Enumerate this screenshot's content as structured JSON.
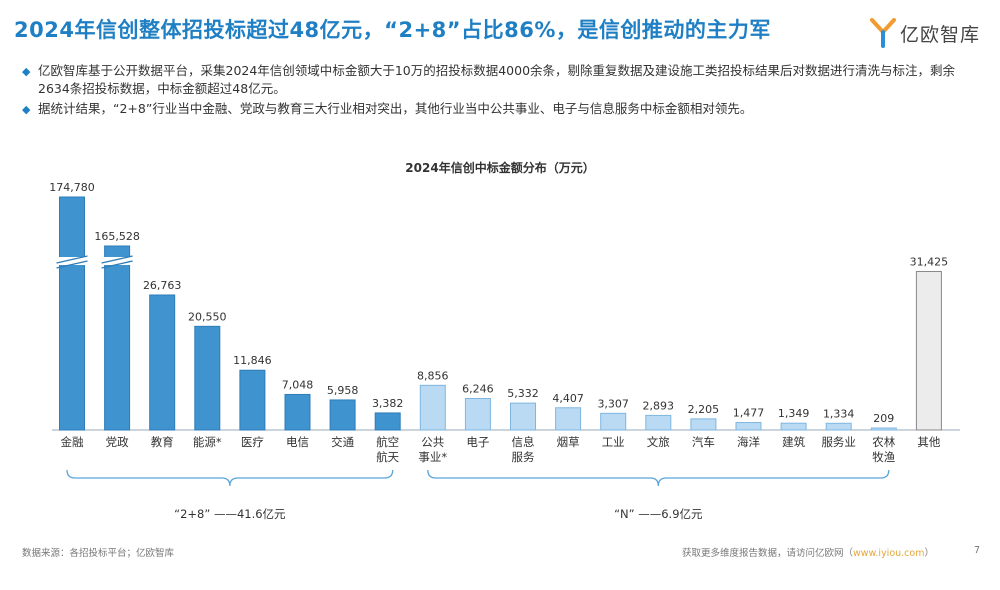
{
  "header": {
    "title": "2024年信创整体招投标超过48亿元，“2+8”占比86%，是信创推动的主力军",
    "logo_text": "亿欧智库"
  },
  "bullets": [
    "亿欧智库基于公开数据平台，采集2024年信创领域中标金额大于10万的招投标数据4000余条，剔除重复数据及建设施工类招投标结果后对数据进行清洗与标注，剩余2634条招投标数据，中标金额超过48亿元。",
    "据统计结果，“2+8”行业当中金融、党政与教育三大行业相对突出，其他行业当中公共事业、电子与信息服务中标金额相对领先。"
  ],
  "chart_data": {
    "type": "bar",
    "title": "2024年信创中标金额分布（万元）",
    "categories": [
      "金融",
      "党政",
      "教育",
      "能源*",
      "医疗",
      "电信",
      "交通",
      "航空\n航天",
      "公共\n事业*",
      "电子",
      "信息\n服务",
      "烟草",
      "工业",
      "文旅",
      "汽车",
      "海洋",
      "建筑",
      "服务业",
      "农林\n牧渔",
      "其他"
    ],
    "values": [
      174780,
      165528,
      26763,
      20550,
      11846,
      7048,
      5958,
      3382,
      8856,
      6246,
      5332,
      4407,
      3307,
      2893,
      2205,
      1477,
      1349,
      1334,
      209,
      31425
    ],
    "value_labels": [
      "174,780",
      "165,528",
      "26,763",
      "20,550",
      "11,846",
      "7,048",
      "5,958",
      "3,382",
      "8,856",
      "6,246",
      "5,332",
      "4,407",
      "3,307",
      "2,893",
      "2,205",
      "1,477",
      "1,349",
      "1,334",
      "209",
      "31,425"
    ],
    "groups": [
      {
        "label": "“2+8” ——41.6亿元",
        "start": 0,
        "end": 7,
        "color": "#3f93cf"
      },
      {
        "label": "“N” ——6.9亿元",
        "start": 8,
        "end": 18,
        "color": "#b9daf2"
      },
      {
        "label": "",
        "start": 19,
        "end": 19,
        "color": "#ececec"
      }
    ],
    "broken_axis_bars": [
      0,
      1
    ],
    "ylim": [
      0,
      40000
    ]
  },
  "footer": {
    "source": "数据来源：各招投标平台；亿欧智库",
    "more_text": "获取更多维度报告数据，请访问亿欧网（",
    "link_text": "www.iyiou.com",
    "more_close": "）",
    "page_number": "7"
  }
}
